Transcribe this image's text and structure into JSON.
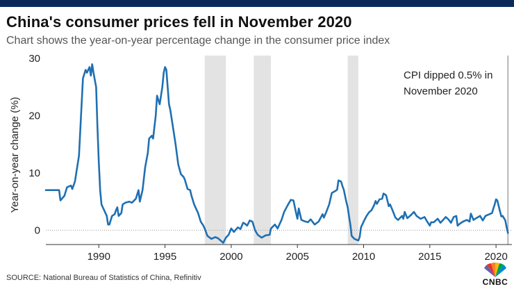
{
  "header": {
    "title": "China's consumer prices fell in November 2020",
    "subtitle": "Chart shows the year-on-year percentage change in the consumer price index"
  },
  "footer": {
    "source": "SOURCE: National Bureau of Statistics of China, Refinitiv",
    "logo_text": "CNBC"
  },
  "colors": {
    "line": "#1f6fb2",
    "shade": "#e3e3e3",
    "header_bar": "#0b2a5a"
  },
  "chart_data": {
    "type": "line",
    "title": "China's consumer prices fell in November 2020",
    "subtitle": "Chart shows the year-on-year percentage change in the consumer price index",
    "xlabel": "",
    "ylabel": "Year-on-year change (%)",
    "xlim": [
      1986.0,
      2021.2
    ],
    "ylim": [
      -2.5,
      30.5
    ],
    "x_ticks": [
      1990,
      1995,
      2000,
      2005,
      2010,
      2015,
      2020
    ],
    "x_tick_labels": [
      "1990",
      "1995",
      "2000",
      "2005",
      "2010",
      "2015",
      "2020"
    ],
    "y_ticks": [
      0,
      10,
      20,
      30
    ],
    "y_tick_labels": [
      "0",
      "10",
      "20",
      "30"
    ],
    "shaded_periods": [
      [
        1998.0,
        1999.6
      ],
      [
        2001.7,
        2003.0
      ],
      [
        2008.8,
        2009.6
      ]
    ],
    "marker_line_x": 2020.9,
    "annotation": "CPI dipped 0.5% in November 2020",
    "annotation_lines": [
      "CPI dipped 0.5% in",
      "November 2020"
    ],
    "series": [
      {
        "name": "CPI year-on-year change (%)",
        "points": [
          [
            1986.0,
            7.0
          ],
          [
            1987.0,
            7.0
          ],
          [
            1987.1,
            5.2
          ],
          [
            1987.4,
            6.0
          ],
          [
            1987.6,
            7.5
          ],
          [
            1987.9,
            7.8
          ],
          [
            1988.0,
            7.2
          ],
          [
            1988.2,
            8.5
          ],
          [
            1988.5,
            13.0
          ],
          [
            1988.7,
            22.0
          ],
          [
            1988.8,
            26.5
          ],
          [
            1989.0,
            28.0
          ],
          [
            1989.1,
            27.5
          ],
          [
            1989.3,
            28.5
          ],
          [
            1989.4,
            27.0
          ],
          [
            1989.5,
            29.0
          ],
          [
            1989.6,
            27.5
          ],
          [
            1989.8,
            25.0
          ],
          [
            1989.9,
            18.0
          ],
          [
            1990.0,
            12.0
          ],
          [
            1990.1,
            7.0
          ],
          [
            1990.2,
            4.5
          ],
          [
            1990.4,
            3.5
          ],
          [
            1990.5,
            3.0
          ],
          [
            1990.6,
            2.5
          ],
          [
            1990.7,
            1.0
          ],
          [
            1990.8,
            1.0
          ],
          [
            1991.0,
            2.5
          ],
          [
            1991.2,
            2.8
          ],
          [
            1991.3,
            3.5
          ],
          [
            1991.4,
            4.0
          ],
          [
            1991.5,
            2.5
          ],
          [
            1991.7,
            3.0
          ],
          [
            1991.8,
            4.5
          ],
          [
            1992.0,
            4.8
          ],
          [
            1992.3,
            5.0
          ],
          [
            1992.5,
            4.8
          ],
          [
            1992.8,
            5.5
          ],
          [
            1993.0,
            7.0
          ],
          [
            1993.1,
            5.0
          ],
          [
            1993.3,
            7.0
          ],
          [
            1993.5,
            11.0
          ],
          [
            1993.7,
            13.5
          ],
          [
            1993.8,
            16.0
          ],
          [
            1994.0,
            16.5
          ],
          [
            1994.1,
            16.0
          ],
          [
            1994.3,
            20.0
          ],
          [
            1994.4,
            23.5
          ],
          [
            1994.6,
            22.0
          ],
          [
            1994.8,
            25.0
          ],
          [
            1994.9,
            27.5
          ],
          [
            1995.0,
            28.5
          ],
          [
            1995.1,
            28.0
          ],
          [
            1995.3,
            22.0
          ],
          [
            1995.4,
            21.0
          ],
          [
            1995.6,
            18.0
          ],
          [
            1995.8,
            15.0
          ],
          [
            1996.0,
            11.5
          ],
          [
            1996.2,
            9.8
          ],
          [
            1996.4,
            9.3
          ],
          [
            1996.5,
            8.8
          ],
          [
            1996.7,
            7.2
          ],
          [
            1996.9,
            7.0
          ],
          [
            1997.0,
            6.0
          ],
          [
            1997.2,
            4.5
          ],
          [
            1997.5,
            3.0
          ],
          [
            1997.7,
            1.5
          ],
          [
            1997.9,
            0.8
          ],
          [
            1998.0,
            0.3
          ],
          [
            1998.2,
            -1.0
          ],
          [
            1998.5,
            -1.5
          ],
          [
            1998.8,
            -1.2
          ],
          [
            1999.0,
            -1.4
          ],
          [
            1999.2,
            -1.8
          ],
          [
            1999.4,
            -2.2
          ],
          [
            1999.6,
            -1.3
          ],
          [
            1999.8,
            -0.8
          ],
          [
            2000.0,
            0.3
          ],
          [
            2000.2,
            -0.3
          ],
          [
            2000.5,
            0.5
          ],
          [
            2000.7,
            0.2
          ],
          [
            2000.9,
            1.3
          ],
          [
            2001.0,
            1.2
          ],
          [
            2001.2,
            0.8
          ],
          [
            2001.4,
            1.7
          ],
          [
            2001.6,
            1.5
          ],
          [
            2001.8,
            0.0
          ],
          [
            2002.0,
            -0.8
          ],
          [
            2002.3,
            -1.3
          ],
          [
            2002.6,
            -0.9
          ],
          [
            2002.9,
            -0.8
          ],
          [
            2003.0,
            0.3
          ],
          [
            2003.3,
            1.0
          ],
          [
            2003.5,
            0.3
          ],
          [
            2003.8,
            1.8
          ],
          [
            2004.0,
            3.2
          ],
          [
            2004.3,
            4.5
          ],
          [
            2004.5,
            5.3
          ],
          [
            2004.7,
            5.2
          ],
          [
            2004.9,
            3.0
          ],
          [
            2005.0,
            2.0
          ],
          [
            2005.1,
            3.8
          ],
          [
            2005.3,
            1.8
          ],
          [
            2005.5,
            1.6
          ],
          [
            2005.8,
            1.4
          ],
          [
            2006.0,
            1.9
          ],
          [
            2006.3,
            1.0
          ],
          [
            2006.6,
            1.5
          ],
          [
            2006.9,
            2.8
          ],
          [
            2007.0,
            2.2
          ],
          [
            2007.2,
            3.3
          ],
          [
            2007.4,
            4.5
          ],
          [
            2007.6,
            6.5
          ],
          [
            2007.9,
            6.9
          ],
          [
            2008.0,
            7.1
          ],
          [
            2008.1,
            8.7
          ],
          [
            2008.3,
            8.5
          ],
          [
            2008.4,
            7.7
          ],
          [
            2008.5,
            7.1
          ],
          [
            2008.7,
            4.9
          ],
          [
            2008.8,
            4.0
          ],
          [
            2008.9,
            2.4
          ],
          [
            2009.0,
            1.0
          ],
          [
            2009.1,
            -1.0
          ],
          [
            2009.3,
            -1.5
          ],
          [
            2009.5,
            -1.7
          ],
          [
            2009.6,
            -1.8
          ],
          [
            2009.7,
            -1.2
          ],
          [
            2009.8,
            0.5
          ],
          [
            2010.0,
            1.5
          ],
          [
            2010.2,
            2.4
          ],
          [
            2010.4,
            3.1
          ],
          [
            2010.6,
            3.5
          ],
          [
            2010.8,
            4.4
          ],
          [
            2010.9,
            5.1
          ],
          [
            2011.0,
            4.6
          ],
          [
            2011.2,
            5.4
          ],
          [
            2011.4,
            5.5
          ],
          [
            2011.5,
            6.4
          ],
          [
            2011.7,
            6.1
          ],
          [
            2011.9,
            4.2
          ],
          [
            2012.0,
            4.5
          ],
          [
            2012.2,
            3.4
          ],
          [
            2012.4,
            2.2
          ],
          [
            2012.6,
            1.8
          ],
          [
            2012.9,
            2.5
          ],
          [
            2013.0,
            2.0
          ],
          [
            2013.1,
            3.2
          ],
          [
            2013.3,
            2.1
          ],
          [
            2013.6,
            2.7
          ],
          [
            2013.8,
            3.2
          ],
          [
            2014.0,
            2.5
          ],
          [
            2014.3,
            2.0
          ],
          [
            2014.6,
            2.3
          ],
          [
            2014.8,
            1.5
          ],
          [
            2015.0,
            0.8
          ],
          [
            2015.1,
            1.4
          ],
          [
            2015.3,
            1.4
          ],
          [
            2015.6,
            2.0
          ],
          [
            2015.8,
            1.3
          ],
          [
            2016.0,
            1.8
          ],
          [
            2016.2,
            2.3
          ],
          [
            2016.4,
            1.9
          ],
          [
            2016.6,
            1.3
          ],
          [
            2016.8,
            2.3
          ],
          [
            2017.0,
            2.5
          ],
          [
            2017.1,
            0.8
          ],
          [
            2017.3,
            1.2
          ],
          [
            2017.5,
            1.5
          ],
          [
            2017.8,
            1.8
          ],
          [
            2018.0,
            1.5
          ],
          [
            2018.1,
            2.9
          ],
          [
            2018.3,
            1.8
          ],
          [
            2018.5,
            2.1
          ],
          [
            2018.8,
            2.5
          ],
          [
            2019.0,
            1.7
          ],
          [
            2019.2,
            2.5
          ],
          [
            2019.5,
            2.8
          ],
          [
            2019.7,
            3.0
          ],
          [
            2019.8,
            3.8
          ],
          [
            2019.9,
            4.5
          ],
          [
            2020.0,
            5.4
          ],
          [
            2020.1,
            5.2
          ],
          [
            2020.3,
            3.3
          ],
          [
            2020.4,
            2.4
          ],
          [
            2020.5,
            2.5
          ],
          [
            2020.7,
            1.7
          ],
          [
            2020.8,
            0.5
          ],
          [
            2020.9,
            -0.5
          ]
        ]
      }
    ]
  }
}
